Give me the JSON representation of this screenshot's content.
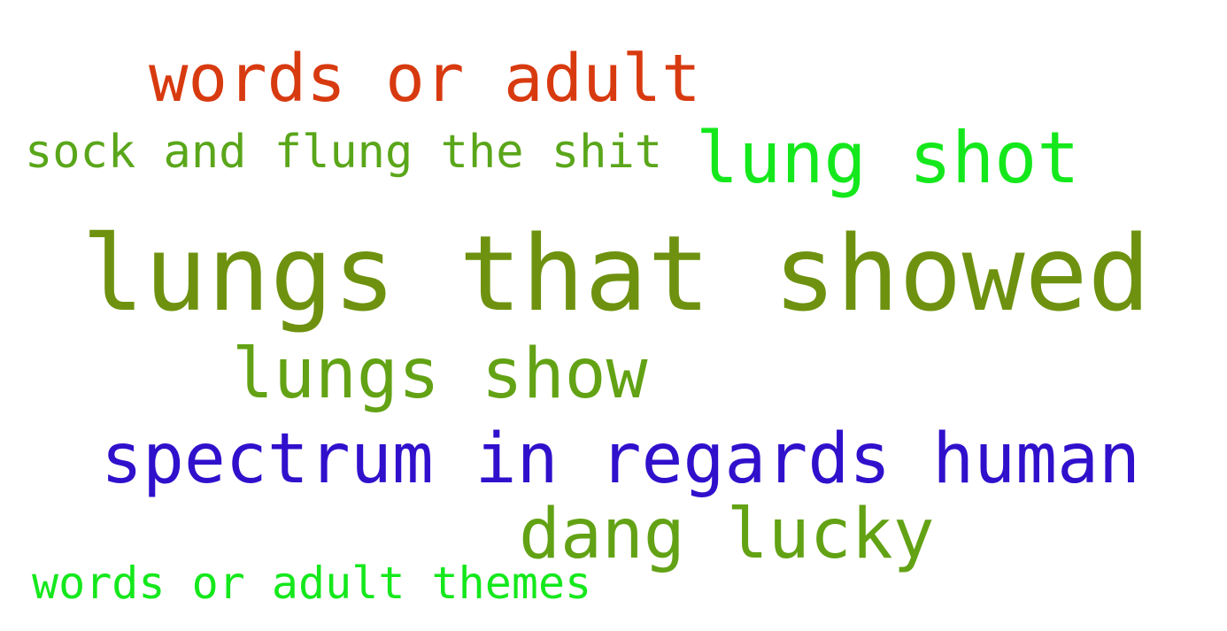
{
  "words": [
    {
      "text": "words or adult",
      "color": "#d83a10"
    },
    {
      "text": "sock and flung the shit",
      "color": "#5aa61a"
    },
    {
      "text": "lung shot",
      "color": "#14e81c"
    },
    {
      "text": "lungs that showed",
      "color": "#6e9210"
    },
    {
      "text": "lungs show",
      "color": "#62a214"
    },
    {
      "text": "spectrum in regards human",
      "color": "#3110cc"
    },
    {
      "text": "dang lucky",
      "color": "#62a214"
    },
    {
      "text": "words or adult themes",
      "color": "#14e81c"
    }
  ]
}
